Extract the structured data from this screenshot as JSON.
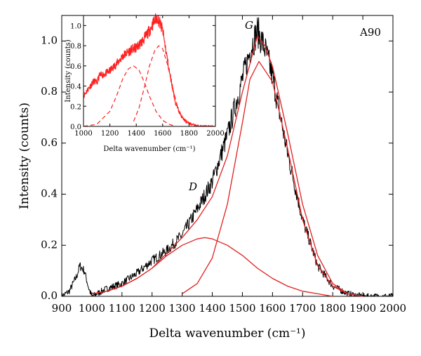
{
  "chart_data": {
    "type": "line",
    "main": {
      "annotation_sample": "A90",
      "peak_label_G": "G",
      "peak_label_D": "D",
      "xlabel": "Delta wavenumber (cm⁻¹)",
      "ylabel": "Intensity (counts)",
      "xlim": [
        900,
        2000
      ],
      "ylim": [
        0,
        1.1
      ],
      "xticks": [
        900,
        1000,
        1100,
        1200,
        1300,
        1400,
        1500,
        1600,
        1700,
        1800,
        1900,
        2000
      ],
      "yticks": [
        0.0,
        0.2,
        0.4,
        0.6,
        0.8,
        1.0
      ],
      "ytick_labels": [
        "0.0",
        "0.2",
        "0.4",
        "0.6",
        "0.8",
        "1.0"
      ],
      "grid": false,
      "series": [
        {
          "role": "raw spectrum",
          "color": "#000000",
          "x": [
            900,
            925,
            950,
            960,
            975,
            990,
            1000,
            1050,
            1100,
            1150,
            1200,
            1250,
            1300,
            1350,
            1400,
            1450,
            1500,
            1530,
            1550,
            1575,
            1600,
            1650,
            1700,
            1750,
            1800,
            1850,
            1900,
            1950,
            2000
          ],
          "y": [
            0.0,
            0.02,
            0.08,
            0.12,
            0.1,
            0.03,
            0.0,
            0.03,
            0.05,
            0.09,
            0.14,
            0.18,
            0.24,
            0.34,
            0.45,
            0.63,
            0.85,
            0.98,
            1.04,
            0.97,
            0.86,
            0.56,
            0.3,
            0.12,
            0.04,
            0.01,
            0.0,
            0.0,
            0.0
          ]
        },
        {
          "role": "fit envelope (D + G)",
          "color": "#e02020",
          "x": [
            1000,
            1050,
            1100,
            1150,
            1200,
            1250,
            1300,
            1350,
            1400,
            1450,
            1500,
            1550,
            1575,
            1600,
            1650,
            1700,
            1750,
            1800,
            1850,
            1900
          ],
          "y": [
            0.01,
            0.02,
            0.04,
            0.07,
            0.11,
            0.17,
            0.23,
            0.3,
            0.39,
            0.55,
            0.8,
            1.02,
            0.98,
            0.9,
            0.64,
            0.36,
            0.16,
            0.05,
            0.01,
            0.0
          ]
        },
        {
          "role": "D band fit",
          "color": "#e02020",
          "x": [
            1000,
            1050,
            1100,
            1150,
            1200,
            1250,
            1300,
            1350,
            1375,
            1400,
            1450,
            1500,
            1550,
            1600,
            1650,
            1700,
            1750,
            1800
          ],
          "y": [
            0.01,
            0.02,
            0.04,
            0.07,
            0.11,
            0.16,
            0.2,
            0.225,
            0.23,
            0.225,
            0.2,
            0.16,
            0.11,
            0.07,
            0.04,
            0.02,
            0.01,
            0.0
          ]
        },
        {
          "role": "G band fit",
          "color": "#e02020",
          "x": [
            1300,
            1350,
            1400,
            1450,
            1500,
            1525,
            1555,
            1600,
            1650,
            1700,
            1750,
            1800,
            1850
          ],
          "y": [
            0.01,
            0.05,
            0.15,
            0.36,
            0.68,
            0.85,
            0.92,
            0.84,
            0.58,
            0.3,
            0.12,
            0.04,
            0.01
          ]
        }
      ]
    },
    "inset": {
      "xlabel": "Delta wavenumber (cm⁻¹)",
      "ylabel": "Intensity (counts)",
      "xlim": [
        1000,
        2000
      ],
      "ylim": [
        0,
        1.1
      ],
      "xticks": [
        1000,
        1200,
        1400,
        1600,
        1800,
        2000
      ],
      "yticks": [
        0.0,
        0.2,
        0.4,
        0.6,
        0.8,
        1.0
      ],
      "ytick_labels": [
        "0.0",
        "0.2",
        "0.4",
        "0.6",
        "0.8",
        "1.0"
      ],
      "series": [
        {
          "role": "raw spectrum",
          "color": "#ff2020",
          "x": [
            1000,
            1040,
            1080,
            1100,
            1120,
            1160,
            1200,
            1250,
            1300,
            1350,
            1400,
            1450,
            1500,
            1540,
            1560,
            1580,
            1600,
            1650,
            1700,
            1750,
            1800,
            1850,
            1900,
            1950,
            2000
          ],
          "y": [
            0.3,
            0.38,
            0.45,
            0.43,
            0.5,
            0.52,
            0.55,
            0.62,
            0.7,
            0.75,
            0.78,
            0.85,
            0.95,
            1.05,
            1.08,
            1.02,
            0.95,
            0.55,
            0.22,
            0.08,
            0.03,
            0.01,
            0.0,
            0.0,
            0.0
          ]
        },
        {
          "role": "D band fit",
          "color": "#ff2020",
          "x": [
            1000,
            1100,
            1200,
            1250,
            1300,
            1340,
            1380,
            1420,
            1460,
            1500,
            1550,
            1600,
            1650,
            1700
          ],
          "y": [
            0.0,
            0.02,
            0.15,
            0.3,
            0.48,
            0.57,
            0.6,
            0.56,
            0.44,
            0.3,
            0.15,
            0.06,
            0.02,
            0.0
          ]
        },
        {
          "role": "G band fit",
          "color": "#ff2020",
          "x": [
            1380,
            1420,
            1460,
            1500,
            1540,
            1570,
            1600,
            1640,
            1680,
            1720,
            1780
          ],
          "y": [
            0.05,
            0.18,
            0.38,
            0.6,
            0.75,
            0.8,
            0.77,
            0.6,
            0.36,
            0.16,
            0.03
          ]
        }
      ]
    }
  }
}
